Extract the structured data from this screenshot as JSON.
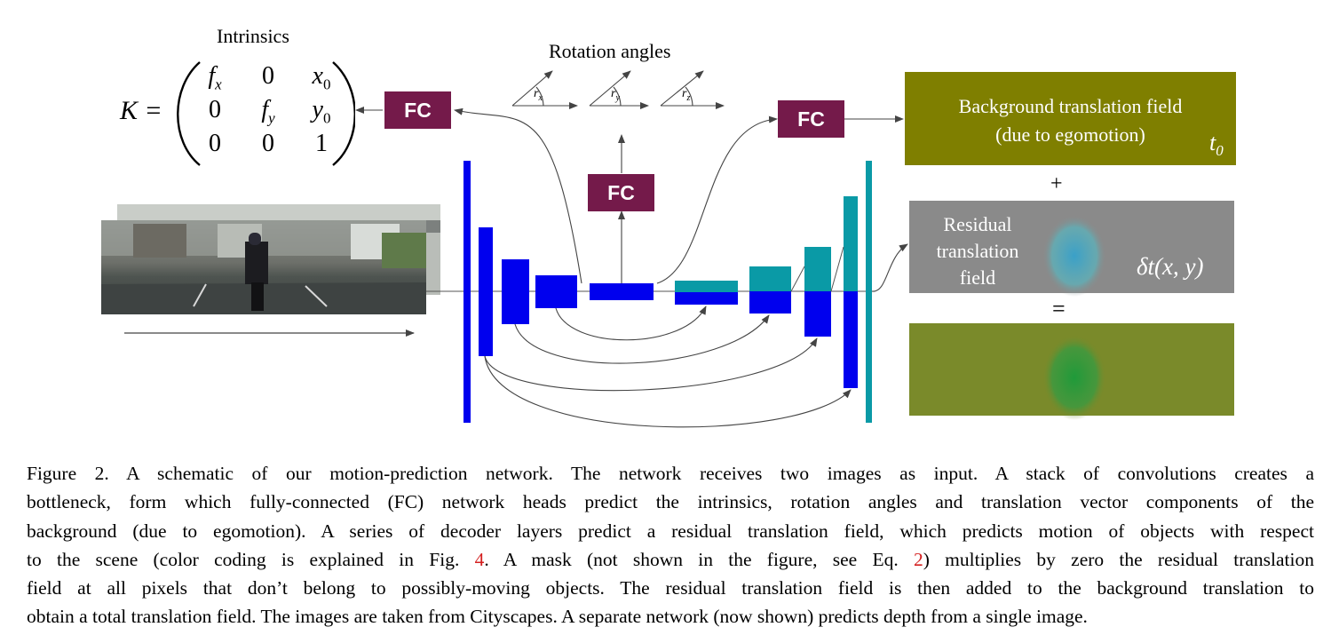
{
  "figure": {
    "intrinsics_label": "Intrinsics",
    "rotation_label": "Rotation angles",
    "rotation_axes": [
      "r",
      "r",
      "r"
    ],
    "rotation_subscripts": [
      "x",
      "y",
      "z"
    ],
    "fc_labels": [
      "FC",
      "FC",
      "FC"
    ],
    "matrix": {
      "lhs": "K =",
      "rows": [
        [
          "f",
          "0",
          "x"
        ],
        [
          "0",
          "f",
          "y"
        ],
        [
          "0",
          "0",
          "1"
        ]
      ],
      "subscripts": [
        [
          "x",
          "",
          "0"
        ],
        [
          "",
          "y",
          "0"
        ],
        [
          "",
          "",
          ""
        ]
      ]
    },
    "background_field": {
      "line1": "Background translation field",
      "line2": "(due to egomotion)",
      "symbol": "t",
      "symbol_sub": "0",
      "color": "#7f7f00"
    },
    "plus": "+",
    "equals": "=",
    "residual_field": {
      "lines": [
        "Residual",
        "translation",
        "field"
      ],
      "symbol": "δt(x, y)",
      "color": "#8a8a8a"
    },
    "colors": {
      "encoder": "#0000ee",
      "decoder_top": "#0a9aa6",
      "fc": "#741a4a",
      "total_field": "#7a8a2a"
    }
  },
  "caption": {
    "lines": [
      "Figure 2. A schematic of our motion-prediction network. The network receives two images as input. A stack of convolutions creates a",
      "bottleneck, form which fully-connected (FC) network heads predict the intrinsics, rotation angles and translation vector components of the",
      "background (due to egomotion). A series of decoder layers predict a residual translation field, which predicts motion of objects with respect",
      "to the scene (color coding is explained in Fig. ",
      "4",
      ". A mask (not shown in the figure, see Eq. ",
      "2",
      ") multiplies by zero the residual translation",
      "field at all pixels that don’t belong to possibly-moving objects. The residual translation field is then added to the background translation to",
      "obtain a total translation field. The images are taken from Cityscapes. A separate network (now shown) predicts depth from a single image."
    ]
  }
}
